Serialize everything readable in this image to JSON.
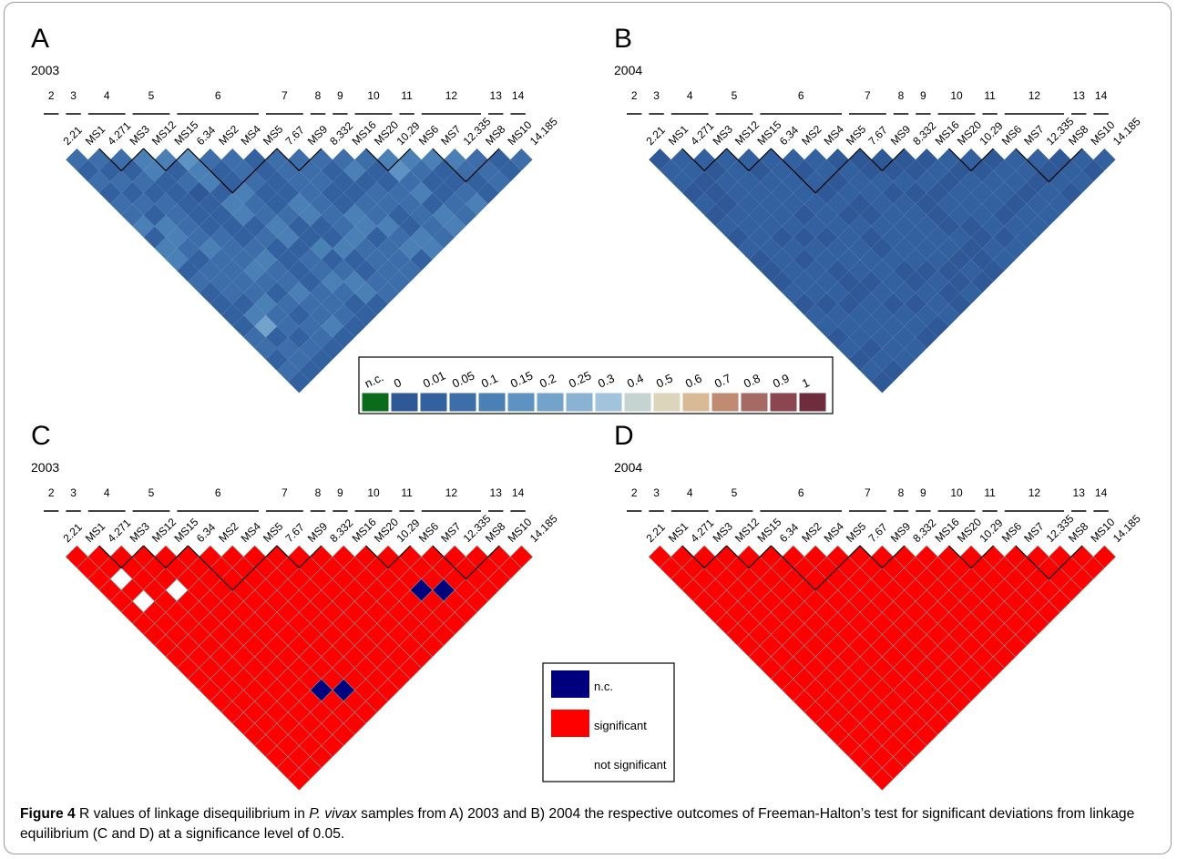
{
  "panels": [
    {
      "letter": "A",
      "year": "2003",
      "kind": "r"
    },
    {
      "letter": "B",
      "year": "2004",
      "kind": "r"
    },
    {
      "letter": "C",
      "year": "2003",
      "kind": "sig"
    },
    {
      "letter": "D",
      "year": "2004",
      "kind": "sig"
    }
  ],
  "groups": [
    "2",
    "3",
    "4",
    "5",
    "6",
    "7",
    "8",
    "9",
    "10",
    "11",
    "12",
    "13",
    "14"
  ],
  "group_sizes": [
    1,
    1,
    2,
    2,
    4,
    2,
    1,
    1,
    2,
    1,
    3,
    1,
    1
  ],
  "markers": [
    "2.21",
    "MS1",
    "4.271",
    "MS3",
    "MS12",
    "MS15",
    "6.34",
    "MS2",
    "MS4",
    "MS5",
    "7.67",
    "MS9",
    "8.332",
    "MS16",
    "MS20",
    "10.29",
    "MS6",
    "MS7",
    "12.335",
    "MS8",
    "MS10",
    "14.185"
  ],
  "scale_legend": {
    "labels": [
      "n.c.",
      "0",
      "0.01",
      "0.05",
      "0.1",
      "0.15",
      "0.2",
      "0.25",
      "0.3",
      "0.4",
      "0.5",
      "0.6",
      "0.7",
      "0.8",
      "0.9",
      "1"
    ],
    "colors": [
      "#0a6b1a",
      "#2f5896",
      "#33609f",
      "#3d6ea9",
      "#4a80b5",
      "#5d92c2",
      "#73a2cb",
      "#8ab3d3",
      "#a2c3dc",
      "#c5d4d0",
      "#ddd5bb",
      "#d9b996",
      "#c08a73",
      "#a66a64",
      "#8c4650",
      "#6e2c3c"
    ]
  },
  "sig_legend": {
    "items": [
      {
        "label": "n.c.",
        "color": "#00007f"
      },
      {
        "label": "significant",
        "color": "#ff0000"
      },
      {
        "label": "not significant",
        "color": "#ffffff"
      }
    ]
  },
  "caption": {
    "figure": "Figure 4",
    "text_1": " R values of linkage disequilibrium in ",
    "species": "P. vivax",
    "text_2": " samples from A) 2003 and B) 2004 the respective outcomes of Freeman-Halton’s test for significant deviations from linkage equilibrium (C and D) at a significance level of 0.05."
  },
  "matrices": {
    "A": [
      "3232334244232222332326",
      "323232443233324623325",
      "32323333433334332324",
      "4422222333432323324",
      "423122223433433423",
      "54424423222233323",
      "3224334423343224",
      "333223224234423",
      "22224422422333",
      "3333333433336",
      "333224423332",
      "32223343423",
      "3423322443",
      "322333332",
      "45342442",
      "4322332",
      "422342",
      "43222",
      "3334",
      "224",
      "32",
      "3"
    ],
    "B": [
      "1221212121112122121212",
      "221112222222212221212",
      "21222221212221222222",
      "2222222122111222222",
      "212221212221212212",
      "22222222222221212",
      "2121212112112221",
      "221211222212112",
      "12222222221121",
      "1121222221212",
      "112111121111",
      "11212211222",
      "1212222121",
      "212221221",
      "21221222",
      "1221221",
      "221222",
      "21212",
      "1222",
      "211",
      "22",
      "2"
    ],
    "C": [
      "2222222222222222222222",
      "221212222222222222222",
      "22222222222222222222",
      "2221222222222222222",
      "222222222222222222",
      "22222222222202222",
      "2222222222220222",
      "222222222222222",
      "22222222222222",
      "2222222222222",
      "222222222222",
      "22222222222",
      "2222222222",
      "222222222",
      "22202222",
      "2220222",
      "222222",
      "22222",
      "2222",
      "222",
      "22",
      "2"
    ],
    "D": [
      "2222222222222222222222",
      "222222222222222222222",
      "22222222222222222222",
      "2222222222222222222",
      "222222222222222222",
      "22222222222222222",
      "2222222222222222",
      "222222222222222",
      "22222222222222",
      "2222222222222",
      "222222222222",
      "22222222222",
      "2222222222",
      "222222222",
      "22222222",
      "2222222",
      "222222",
      "22222",
      "2222",
      "222",
      "22",
      "2"
    ]
  }
}
